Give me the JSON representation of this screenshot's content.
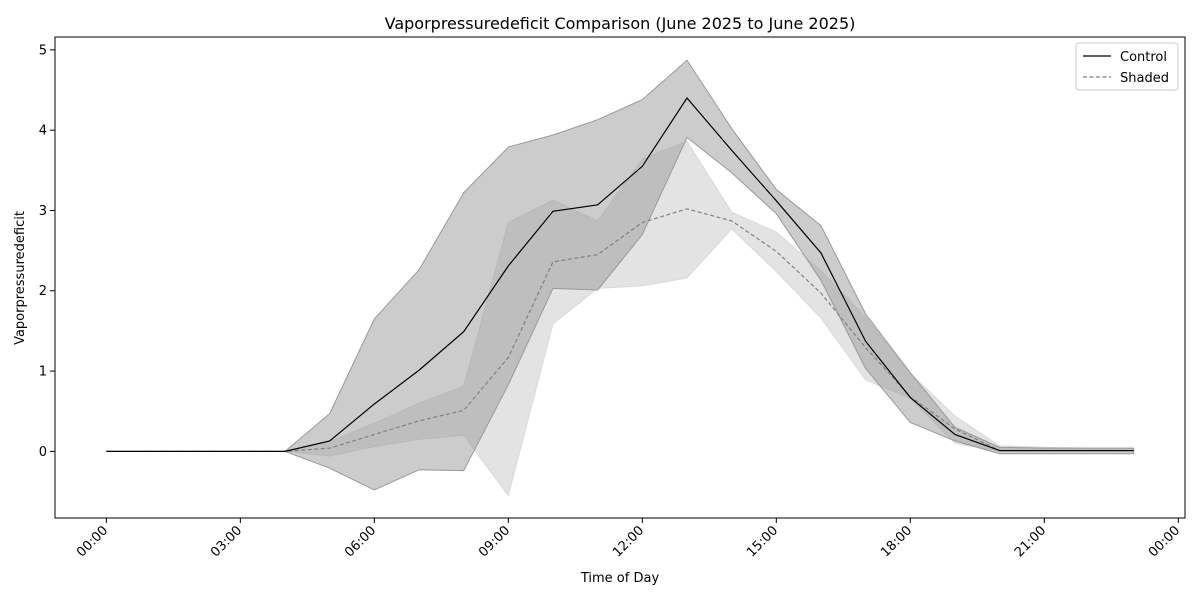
{
  "chart_data": {
    "type": "line",
    "title": "Vaporpressuredeficit Comparison (June 2025 to June 2025)",
    "xlabel": "Time of Day",
    "ylabel": "Vaporpressuredeficit",
    "x_unit": "hour of day",
    "x": [
      0,
      1,
      2,
      3,
      4,
      5,
      6,
      7,
      8,
      9,
      10,
      11,
      12,
      13,
      14,
      15,
      16,
      17,
      18,
      19,
      20,
      21,
      22,
      23
    ],
    "xlim": [
      -1.15,
      24.15
    ],
    "ylim": [
      -0.83,
      5.16
    ],
    "x_ticks": [
      {
        "value": 0,
        "label": "00:00"
      },
      {
        "value": 3,
        "label": "03:00"
      },
      {
        "value": 6,
        "label": "06:00"
      },
      {
        "value": 9,
        "label": "09:00"
      },
      {
        "value": 12,
        "label": "12:00"
      },
      {
        "value": 15,
        "label": "15:00"
      },
      {
        "value": 18,
        "label": "18:00"
      },
      {
        "value": 21,
        "label": "21:00"
      },
      {
        "value": 24,
        "label": "00:00"
      }
    ],
    "y_ticks": [
      {
        "value": 0,
        "label": "0"
      },
      {
        "value": 1,
        "label": "1"
      },
      {
        "value": 2,
        "label": "2"
      },
      {
        "value": 3,
        "label": "3"
      },
      {
        "value": 4,
        "label": "4"
      },
      {
        "value": 5,
        "label": "5"
      }
    ],
    "grid": false,
    "legend_position": "top-right",
    "series": [
      {
        "name": "Control",
        "color": "#000000",
        "line_style": "solid",
        "band_color": "#999999",
        "values": [
          0,
          0,
          0,
          0,
          0,
          0.13,
          0.59,
          1.01,
          1.49,
          2.31,
          2.99,
          3.07,
          3.55,
          4.4,
          3.75,
          3.12,
          2.47,
          1.37,
          0.67,
          0.21,
          0.01,
          0.01,
          0.01,
          0.01
        ],
        "lower": [
          0,
          0,
          0,
          0,
          0,
          -0.21,
          -0.48,
          -0.23,
          -0.24,
          0.83,
          2.03,
          2.01,
          2.7,
          3.91,
          3.47,
          2.96,
          2.13,
          1.03,
          0.36,
          0.13,
          -0.03,
          -0.03,
          -0.03,
          -0.03
        ],
        "upper": [
          0,
          0,
          0,
          0,
          0,
          0.47,
          1.65,
          2.26,
          3.22,
          3.79,
          3.94,
          4.13,
          4.38,
          4.87,
          4.02,
          3.26,
          2.81,
          1.71,
          0.98,
          0.3,
          0.05,
          0.04,
          0.04,
          0.04
        ]
      },
      {
        "name": "Shaded",
        "color": "#808080",
        "line_style": "dashed",
        "band_color": "#d9d9d9",
        "values": [
          0,
          0,
          0,
          0,
          0,
          0.04,
          0.21,
          0.38,
          0.51,
          1.17,
          2.36,
          2.45,
          2.85,
          3.02,
          2.87,
          2.49,
          1.97,
          1.29,
          0.68,
          0.28,
          0.01,
          0.01,
          0.01,
          0.01
        ],
        "lower": [
          0,
          0,
          0,
          0,
          0,
          -0.06,
          0.06,
          0.15,
          0.2,
          -0.55,
          1.59,
          2.03,
          2.06,
          2.16,
          2.77,
          2.24,
          1.66,
          0.89,
          0.66,
          0.1,
          0,
          0,
          0,
          0
        ],
        "upper": [
          0,
          0,
          0,
          0,
          0,
          0.12,
          0.35,
          0.6,
          0.81,
          2.85,
          3.13,
          2.87,
          3.64,
          3.86,
          2.98,
          2.73,
          2.25,
          1.67,
          0.97,
          0.44,
          0.07,
          0.05,
          0.04,
          0.04
        ]
      }
    ]
  }
}
